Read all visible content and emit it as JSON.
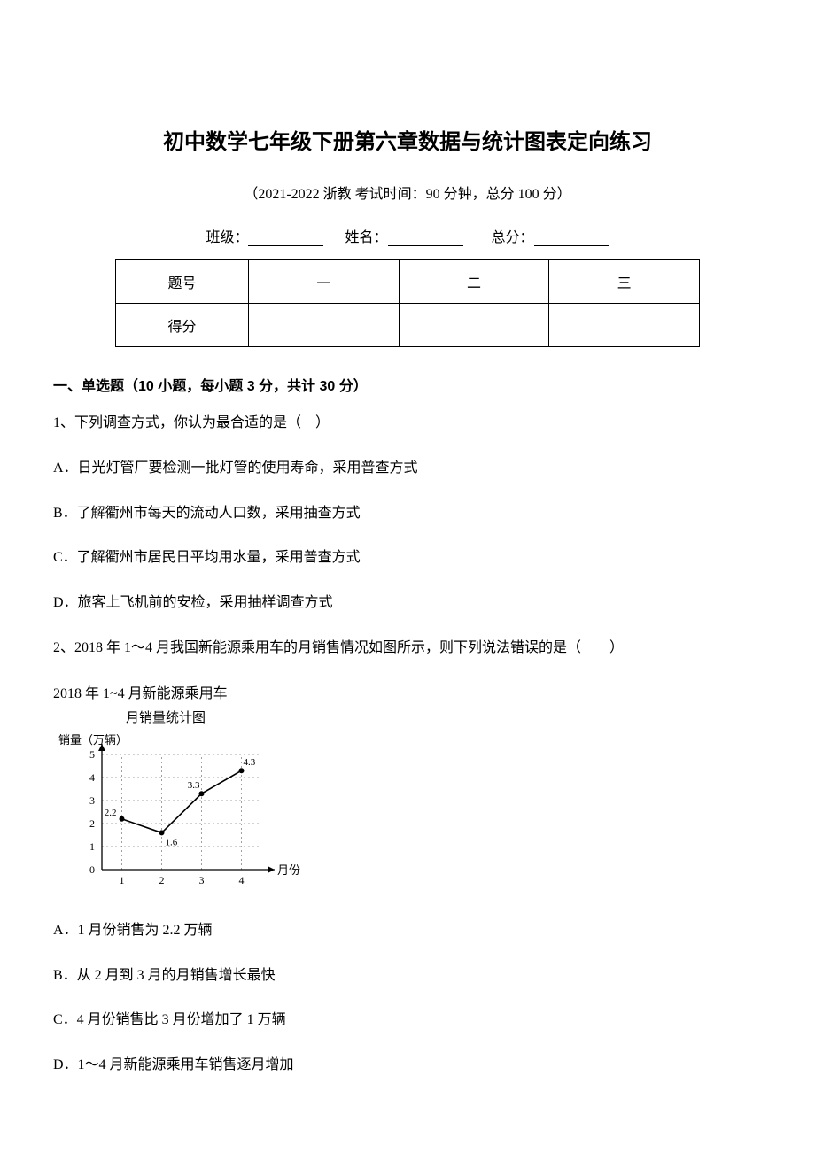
{
  "title": "初中数学七年级下册第六章数据与统计图表定向练习",
  "subtitle": "（2021-2022 浙教 考试时间：90 分钟，总分 100 分）",
  "info": {
    "class_label": "班级：",
    "name_label": "姓名：",
    "total_label": "总分："
  },
  "score_table": {
    "header": "题号",
    "score_label": "得分",
    "cols": [
      "一",
      "二",
      "三"
    ]
  },
  "section1": "一、单选题（10 小题，每小题 3 分，共计 30 分）",
  "q1": {
    "stem": "1、下列调查方式，你认为最合适的是（　）",
    "A": "A．日光灯管厂要检测一批灯管的使用寿命，采用普查方式",
    "B": "B．了解衢州市每天的流动人口数，采用抽查方式",
    "C": "C．了解衢州市居民日平均用水量，采用普查方式",
    "D": "D．旅客上飞机前的安检，采用抽样调查方式"
  },
  "q2": {
    "stem": "2、2018 年 1～4 月我国新能源乘用车的月销售情况如图所示，则下列说法错误的是（　　）",
    "chart": {
      "type": "line",
      "title1": "2018 年 1~4 月新能源乘用车",
      "title2": "月销量统计图",
      "ylabel": "销量（万辆）",
      "xlabel": "月份",
      "x": [
        1,
        2,
        3,
        4
      ],
      "y": [
        2.2,
        1.6,
        3.3,
        4.3
      ],
      "point_labels": [
        "2.2",
        "1.6",
        "3.3",
        "4.3"
      ],
      "ylim": [
        0,
        5
      ],
      "yticks": [
        0,
        1,
        2,
        3,
        4,
        5
      ],
      "xticks": [
        1,
        2,
        3,
        4
      ],
      "axis_color": "#000000",
      "grid_color": "#888888",
      "line_color": "#000000",
      "marker_color": "#000000",
      "bg": "#ffffff",
      "label_fontsize": 13,
      "tick_fontsize": 12,
      "point_label_fontsize": 11,
      "line_width": 1.6,
      "marker_size": 3
    },
    "A": "A．1 月份销售为 2.2 万辆",
    "B": "B．从 2 月到 3 月的月销售增长最快",
    "C": "C．4 月份销售比 3 月份增加了 1 万辆",
    "D": "D．1～4 月新能源乘用车销售逐月增加"
  }
}
